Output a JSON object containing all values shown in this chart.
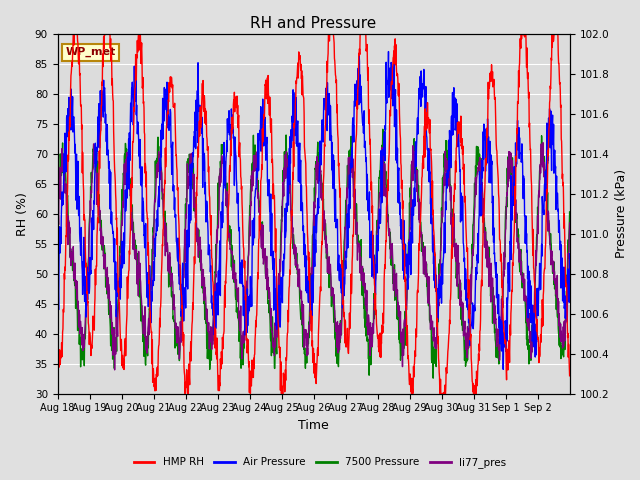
{
  "title": "RH and Pressure",
  "xlabel": "Time",
  "ylabel_left": "RH (%)",
  "ylabel_right": "Pressure (kPa)",
  "ylim_left": [
    30,
    90
  ],
  "ylim_right": [
    100.2,
    102.0
  ],
  "annotation": "WP_met",
  "fig_bg_color": "#e0e0e0",
  "plot_bg_color": "#e0e0e0",
  "legend_items": [
    "HMP RH",
    "Air Pressure",
    "7500 Pressure",
    "li77_pres"
  ],
  "legend_colors": [
    "red",
    "blue",
    "green",
    "purple"
  ],
  "tick_labels": [
    "Aug 18",
    "Aug 19",
    "Aug 20",
    "Aug 21",
    "Aug 22",
    "Aug 23",
    "Aug 24",
    "Aug 25",
    "Aug 26",
    "Aug 27",
    "Aug 28",
    "Aug 29",
    "Aug 30",
    "Aug 31",
    "Sep 1",
    "Sep 2"
  ],
  "n_days": 16,
  "title_fontsize": 11,
  "label_fontsize": 9,
  "tick_fontsize": 7.5
}
